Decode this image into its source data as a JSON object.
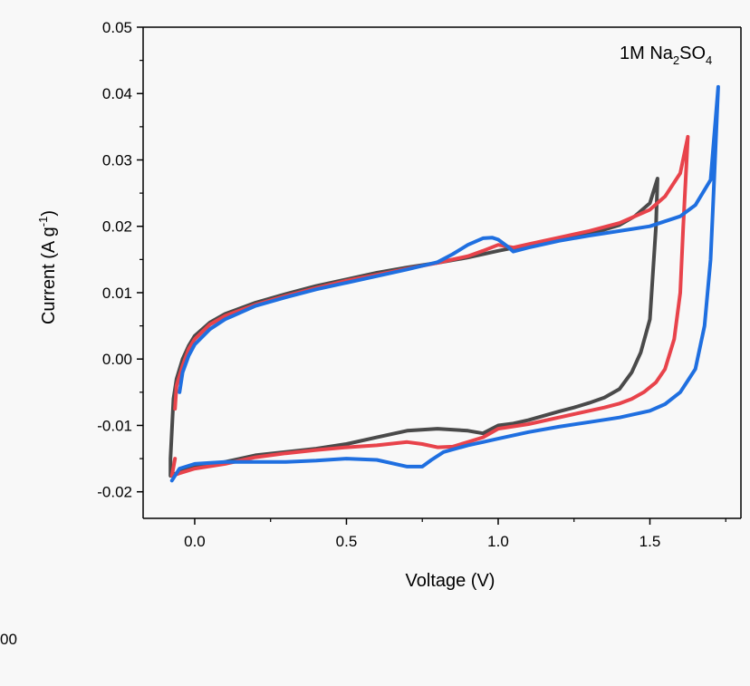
{
  "chart_data": {
    "type": "line",
    "title": "",
    "xlabel": "Voltage (V)",
    "ylabel": {
      "main": "Current (A g",
      "sup": "-1",
      "tail": ")"
    },
    "xlim": [
      -0.17,
      1.8
    ],
    "ylim": [
      -0.024,
      0.05
    ],
    "x_ticks": [
      0.0,
      0.5,
      1.0,
      1.5
    ],
    "x_tick_labels": [
      "0.0",
      "0.5",
      "1.0",
      "1.5"
    ],
    "y_ticks": [
      -0.02,
      -0.01,
      0.0,
      0.01,
      0.02,
      0.03,
      0.04,
      0.05
    ],
    "y_tick_labels": [
      "-0.02",
      "-0.01",
      "0.00",
      "0.01",
      "0.02",
      "0.03",
      "0.04",
      "0.05"
    ],
    "annotation": {
      "prefix": "1M Na",
      "sub1": "2",
      "mid": "SO",
      "sub2": "4"
    },
    "stray_text": "00",
    "series": [
      {
        "color": "#4a4a4a",
        "x": [
          -0.08,
          -0.07,
          -0.06,
          -0.04,
          -0.02,
          0.0,
          0.05,
          0.1,
          0.2,
          0.3,
          0.4,
          0.5,
          0.6,
          0.7,
          0.8,
          0.9,
          1.0,
          1.1,
          1.2,
          1.3,
          1.4,
          1.45,
          1.5,
          1.525,
          1.52,
          1.5,
          1.47,
          1.44,
          1.4,
          1.35,
          1.3,
          1.25,
          1.2,
          1.1,
          1.05,
          1.0,
          0.95,
          0.9,
          0.8,
          0.7,
          0.6,
          0.5,
          0.4,
          0.3,
          0.2,
          0.1,
          0.0,
          -0.05,
          -0.08,
          -0.08
        ],
        "y": [
          -0.015,
          -0.006,
          -0.003,
          0.0,
          0.002,
          0.0035,
          0.0055,
          0.0068,
          0.0085,
          0.0098,
          0.011,
          0.012,
          0.013,
          0.0138,
          0.0145,
          0.0153,
          0.0163,
          0.0172,
          0.018,
          0.0188,
          0.0202,
          0.0215,
          0.0235,
          0.0272,
          0.02,
          0.006,
          0.001,
          -0.002,
          -0.0045,
          -0.0058,
          -0.0066,
          -0.0073,
          -0.0079,
          -0.0092,
          -0.0097,
          -0.01,
          -0.0112,
          -0.0108,
          -0.0105,
          -0.0108,
          -0.0118,
          -0.0128,
          -0.0135,
          -0.014,
          -0.0145,
          -0.0155,
          -0.0162,
          -0.017,
          -0.0176,
          -0.015
        ]
      },
      {
        "color": "#e8434b",
        "x": [
          -0.065,
          -0.06,
          -0.04,
          -0.02,
          0.0,
          0.05,
          0.1,
          0.2,
          0.3,
          0.4,
          0.5,
          0.6,
          0.7,
          0.8,
          0.9,
          0.95,
          1.0,
          1.05,
          1.1,
          1.2,
          1.3,
          1.4,
          1.5,
          1.55,
          1.6,
          1.625,
          1.61,
          1.6,
          1.58,
          1.55,
          1.52,
          1.48,
          1.44,
          1.4,
          1.35,
          1.3,
          1.25,
          1.2,
          1.1,
          1.0,
          0.95,
          0.9,
          0.85,
          0.8,
          0.75,
          0.7,
          0.6,
          0.5,
          0.4,
          0.3,
          0.2,
          0.1,
          0.0,
          -0.05,
          -0.075,
          -0.065
        ],
        "y": [
          -0.0075,
          -0.004,
          -0.001,
          0.0015,
          0.003,
          0.0052,
          0.0065,
          0.0082,
          0.0095,
          0.0107,
          0.0118,
          0.0127,
          0.0136,
          0.0145,
          0.0155,
          0.0163,
          0.0172,
          0.0168,
          0.0173,
          0.0183,
          0.0193,
          0.0205,
          0.0225,
          0.0245,
          0.028,
          0.0335,
          0.02,
          0.01,
          0.003,
          -0.0015,
          -0.0035,
          -0.005,
          -0.006,
          -0.0067,
          -0.0073,
          -0.0078,
          -0.0083,
          -0.0088,
          -0.0098,
          -0.0105,
          -0.0118,
          -0.0125,
          -0.0132,
          -0.0133,
          -0.0128,
          -0.0125,
          -0.013,
          -0.0133,
          -0.0137,
          -0.0142,
          -0.0148,
          -0.0158,
          -0.0165,
          -0.0172,
          -0.0176,
          -0.015
        ]
      },
      {
        "color": "#1f6fe0",
        "x": [
          -0.05,
          -0.04,
          -0.02,
          0.0,
          0.05,
          0.1,
          0.2,
          0.3,
          0.4,
          0.5,
          0.6,
          0.7,
          0.8,
          0.85,
          0.9,
          0.95,
          0.98,
          1.0,
          1.03,
          1.05,
          1.1,
          1.2,
          1.3,
          1.4,
          1.5,
          1.6,
          1.65,
          1.7,
          1.725,
          1.71,
          1.7,
          1.68,
          1.65,
          1.6,
          1.55,
          1.5,
          1.4,
          1.3,
          1.2,
          1.1,
          1.0,
          0.95,
          0.9,
          0.86,
          0.82,
          0.78,
          0.75,
          0.7,
          0.65,
          0.6,
          0.5,
          0.4,
          0.3,
          0.2,
          0.1,
          0.0,
          -0.05,
          -0.075
        ],
        "y": [
          -0.005,
          -0.002,
          0.0005,
          0.0022,
          0.0045,
          0.006,
          0.008,
          0.0093,
          0.0105,
          0.0115,
          0.0125,
          0.0135,
          0.0146,
          0.0158,
          0.0172,
          0.0182,
          0.0183,
          0.018,
          0.017,
          0.0162,
          0.0168,
          0.0178,
          0.0186,
          0.0193,
          0.02,
          0.0215,
          0.0232,
          0.027,
          0.041,
          0.025,
          0.015,
          0.005,
          -0.0015,
          -0.005,
          -0.0068,
          -0.0078,
          -0.0088,
          -0.0095,
          -0.0102,
          -0.011,
          -0.012,
          -0.0125,
          -0.013,
          -0.0135,
          -0.014,
          -0.0152,
          -0.0162,
          -0.0162,
          -0.0157,
          -0.0152,
          -0.015,
          -0.0153,
          -0.0155,
          -0.0155,
          -0.0155,
          -0.0158,
          -0.0165,
          -0.0183
        ]
      }
    ]
  }
}
